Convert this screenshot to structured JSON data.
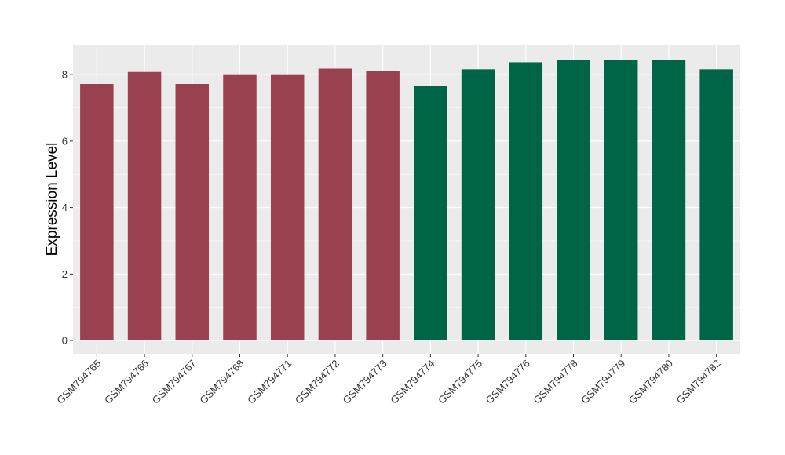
{
  "chart_data": {
    "type": "bar",
    "title": "",
    "xlabel": "",
    "ylabel": "Expression Level",
    "ylim": [
      -0.4,
      8.9
    ],
    "yticks": [
      0,
      2,
      4,
      6,
      8
    ],
    "grid": true,
    "legend": "none",
    "categories": [
      "GSM794765",
      "GSM794766",
      "GSM794767",
      "GSM794768",
      "GSM794771",
      "GSM794772",
      "GSM794773",
      "GSM794774",
      "GSM794775",
      "GSM794776",
      "GSM794778",
      "GSM794779",
      "GSM794780",
      "GSM794782"
    ],
    "values": [
      7.72,
      8.08,
      7.72,
      8.01,
      8.01,
      8.18,
      8.1,
      7.66,
      8.16,
      8.37,
      8.43,
      8.43,
      8.43,
      8.16
    ],
    "bar_colors": [
      "#9a4150",
      "#9a4150",
      "#9a4150",
      "#9a4150",
      "#9a4150",
      "#9a4150",
      "#9a4150",
      "#006446",
      "#006446",
      "#006446",
      "#006446",
      "#006446",
      "#006446",
      "#006446"
    ],
    "panel_background": "#ebebeb",
    "gridline_color": "#ffffff"
  }
}
